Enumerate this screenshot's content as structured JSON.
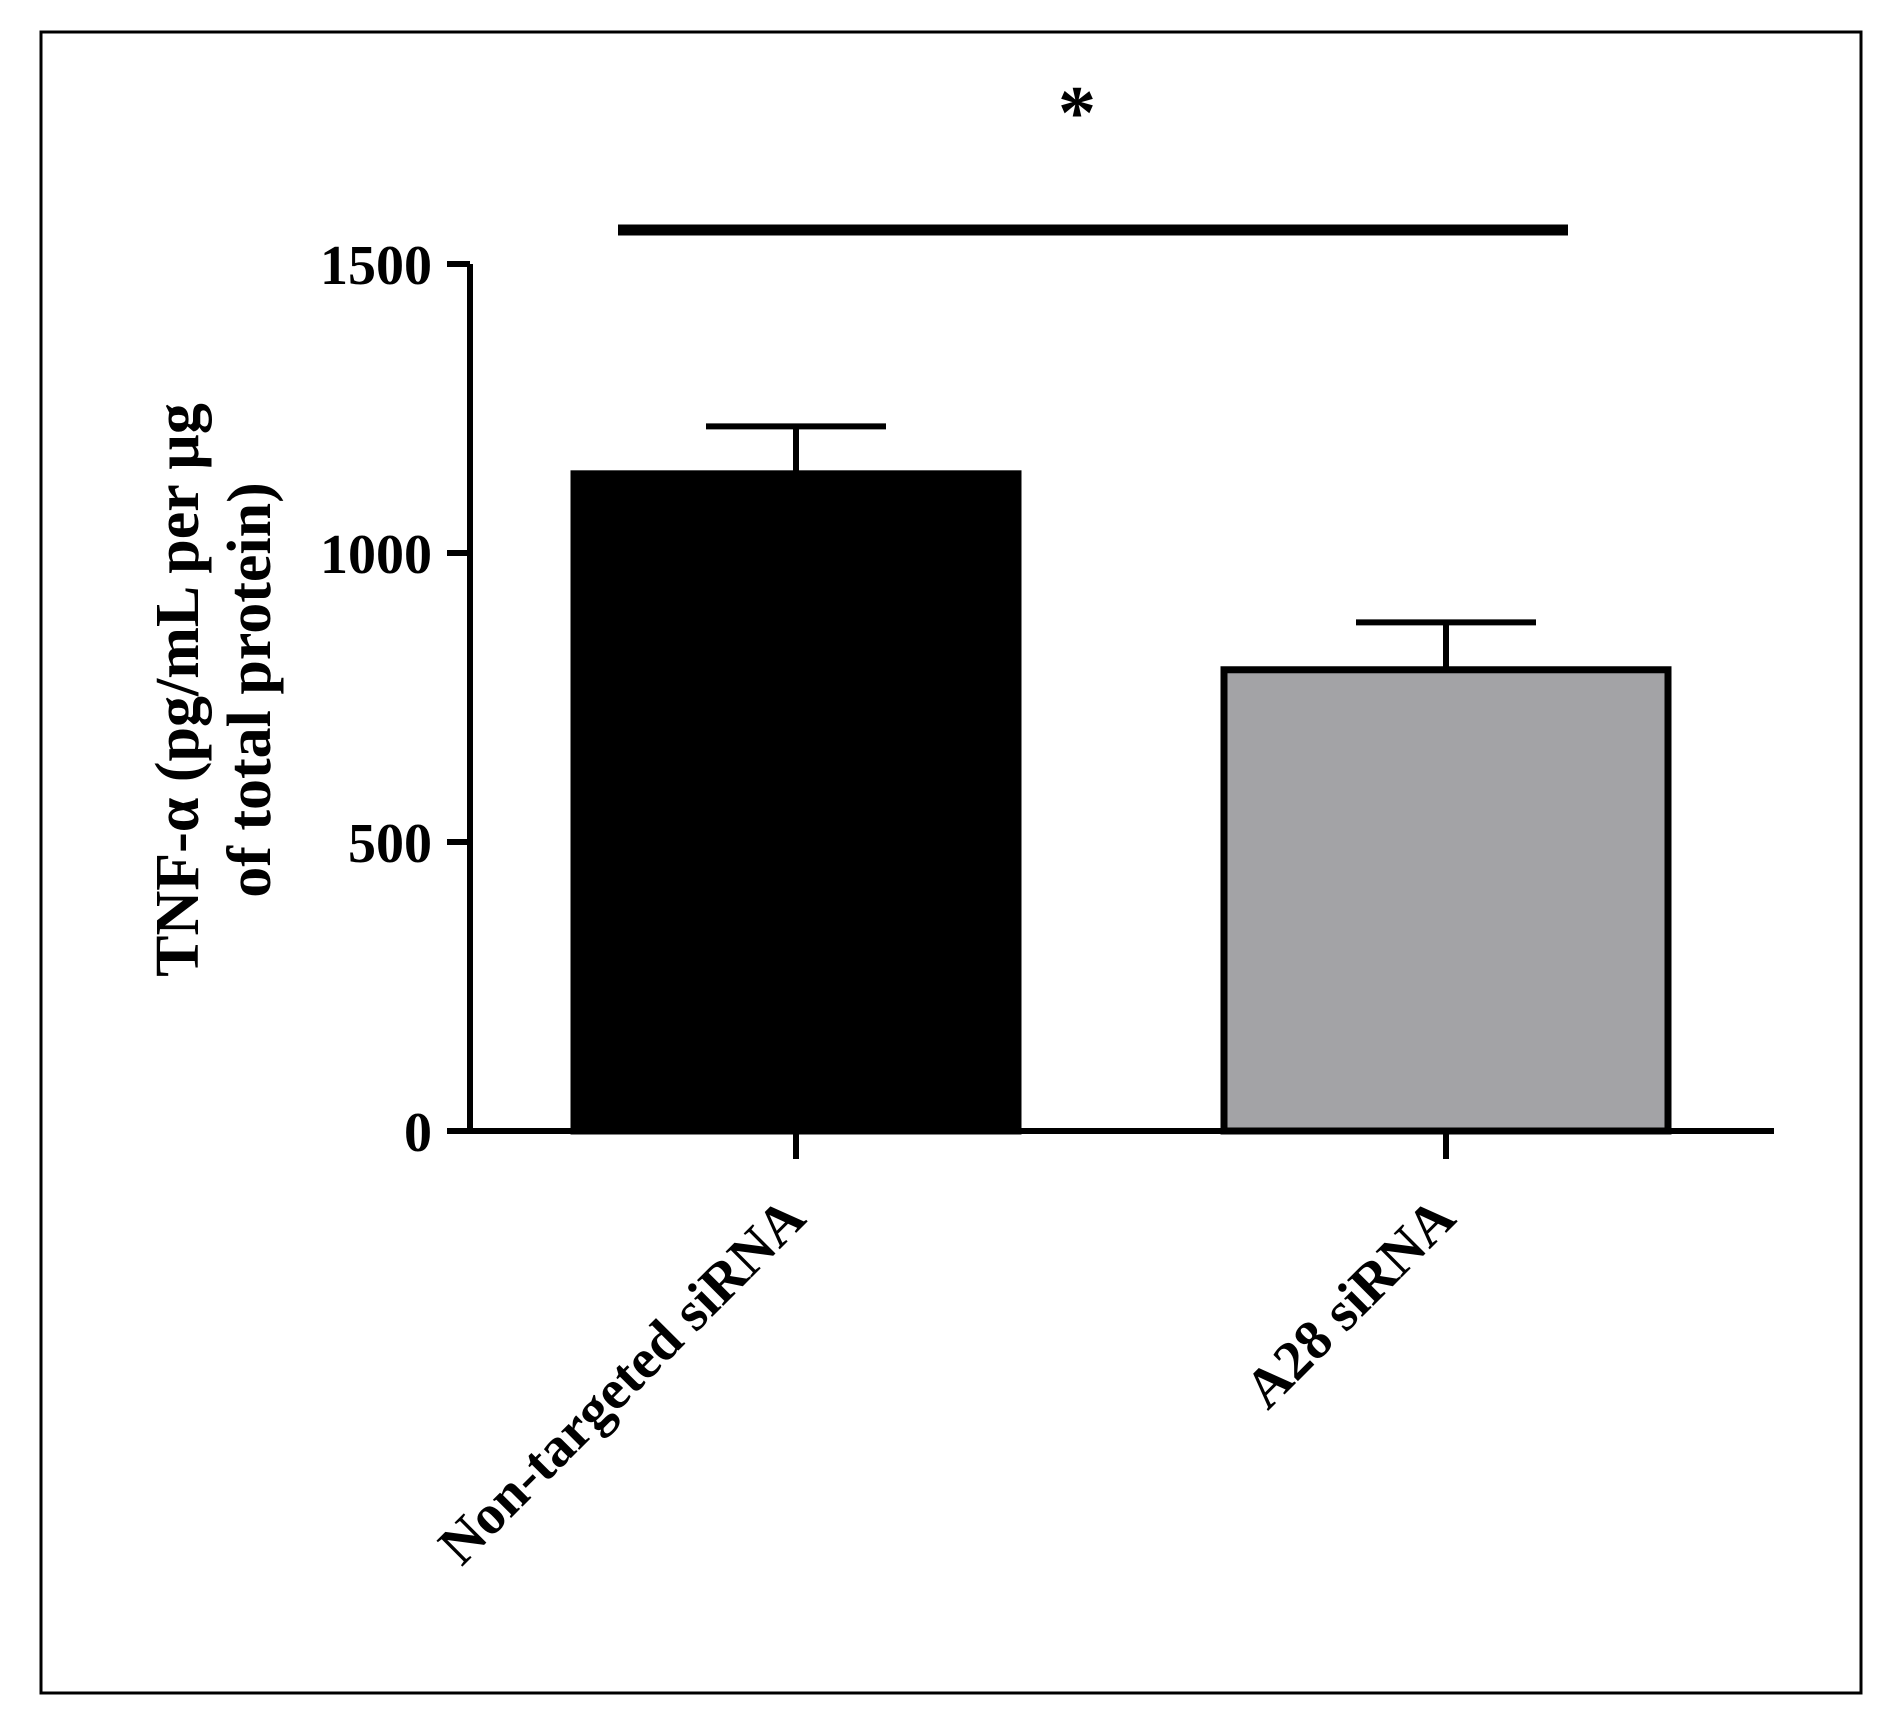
{
  "chart_data": {
    "type": "bar",
    "title": "",
    "ylabel_line1": "TNF-α (pg/mL per µg",
    "ylabel_line2": "of total protein)",
    "xlabel": "",
    "categories": [
      "Non-targeted siRNA",
      "A28 siRNA"
    ],
    "values": [
      1137,
      798
    ],
    "errors": [
      82,
      82
    ],
    "ylim": [
      0,
      1500
    ],
    "yticks": [
      0,
      500,
      1000,
      1500
    ],
    "ytick_labels": [
      "0",
      "500",
      "1000",
      "1500"
    ],
    "bar_colors": [
      "#000000",
      "#a3a3a6"
    ],
    "grid": false,
    "legend": "none",
    "significance": {
      "label": "*",
      "between": [
        0,
        1
      ]
    }
  }
}
